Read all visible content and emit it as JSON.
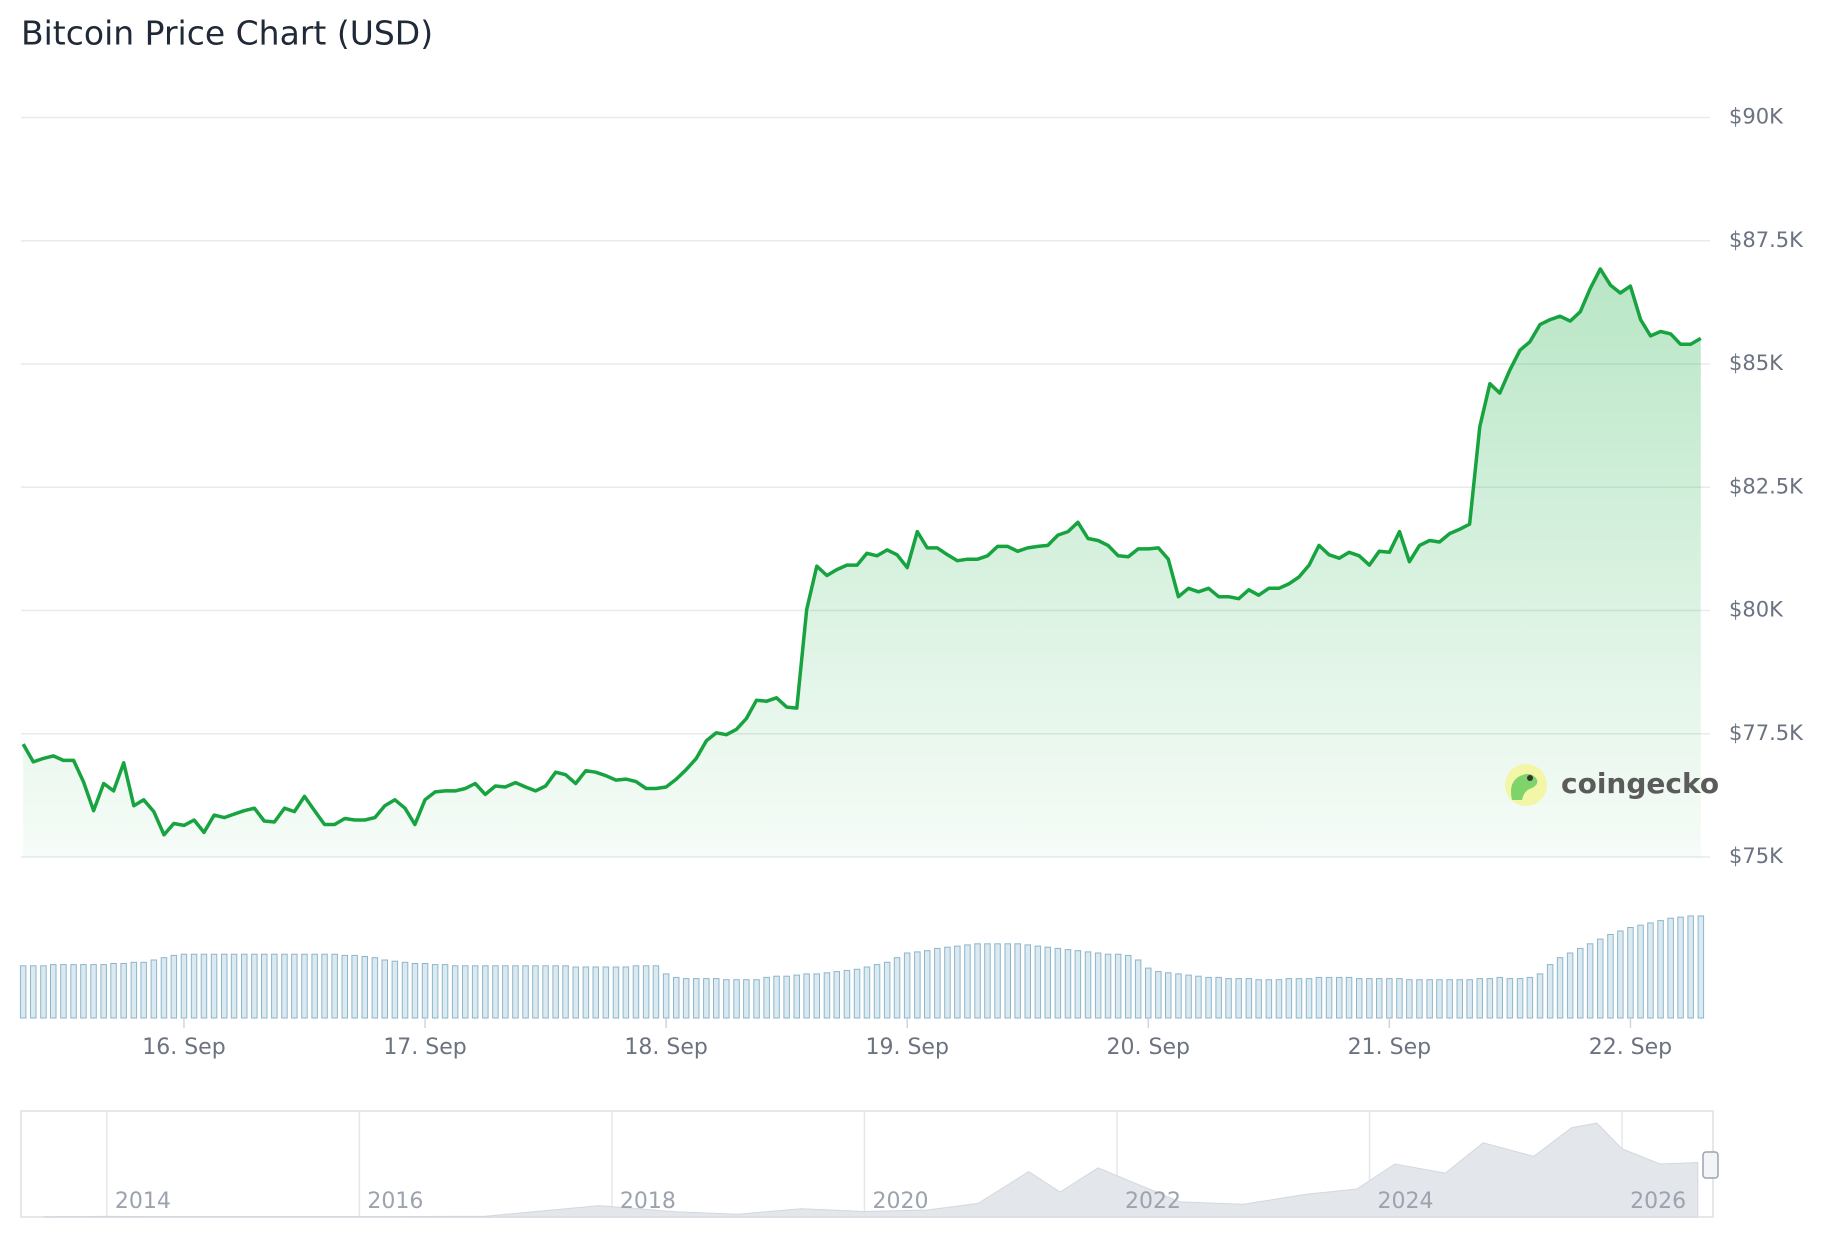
{
  "chart_data": {
    "type": "line",
    "title": "Bitcoin Price Chart (USD)",
    "watermark": "coingecko",
    "color": "#17a33f",
    "grid": true,
    "xlim": [
      15.324,
      22.33
    ],
    "ylim": [
      75000,
      90000
    ],
    "yticks": [
      {
        "value": 75000,
        "label": "$75K"
      },
      {
        "value": 77500,
        "label": "$77.5K"
      },
      {
        "value": 80000,
        "label": "$80K"
      },
      {
        "value": 82500,
        "label": "$82.5K"
      },
      {
        "value": 85000,
        "label": "$85K"
      },
      {
        "value": 87500,
        "label": "$87.5K"
      },
      {
        "value": 90000,
        "label": "$90K"
      }
    ],
    "xticks": [
      {
        "value": 16,
        "label": "16. Sep"
      },
      {
        "value": 17,
        "label": "17. Sep"
      },
      {
        "value": 18,
        "label": "18. Sep"
      },
      {
        "value": 19,
        "label": "19. Sep"
      },
      {
        "value": 20,
        "label": "20. Sep"
      },
      {
        "value": 21,
        "label": "21. Sep"
      },
      {
        "value": 22,
        "label": "22. Sep"
      }
    ],
    "x": [
      15.333,
      15.375,
      15.417,
      15.458,
      15.5,
      15.542,
      15.583,
      15.625,
      15.667,
      15.708,
      15.75,
      15.792,
      15.833,
      15.875,
      15.917,
      15.958,
      16,
      16.042,
      16.083,
      16.125,
      16.167,
      16.208,
      16.25,
      16.292,
      16.333,
      16.375,
      16.417,
      16.458,
      16.5,
      16.542,
      16.583,
      16.625,
      16.667,
      16.708,
      16.75,
      16.792,
      16.833,
      16.875,
      16.917,
      16.958,
      17,
      17.042,
      17.083,
      17.125,
      17.167,
      17.208,
      17.25,
      17.292,
      17.333,
      17.375,
      17.417,
      17.458,
      17.5,
      17.542,
      17.583,
      17.625,
      17.667,
      17.708,
      17.75,
      17.792,
      17.833,
      17.875,
      17.917,
      17.958,
      18,
      18.042,
      18.083,
      18.125,
      18.167,
      18.208,
      18.25,
      18.292,
      18.333,
      18.375,
      18.417,
      18.458,
      18.5,
      18.542,
      18.583,
      18.625,
      18.667,
      18.708,
      18.75,
      18.792,
      18.833,
      18.875,
      18.917,
      18.958,
      19,
      19.042,
      19.083,
      19.125,
      19.167,
      19.208,
      19.25,
      19.292,
      19.333,
      19.375,
      19.417,
      19.458,
      19.5,
      19.542,
      19.583,
      19.625,
      19.667,
      19.708,
      19.75,
      19.792,
      19.833,
      19.875,
      19.917,
      19.958,
      20,
      20.042,
      20.083,
      20.125,
      20.167,
      20.208,
      20.25,
      20.292,
      20.333,
      20.375,
      20.417,
      20.458,
      20.5,
      20.542,
      20.583,
      20.625,
      20.667,
      20.708,
      20.75,
      20.792,
      20.833,
      20.875,
      20.917,
      20.958,
      21,
      21.042,
      21.083,
      21.125,
      21.167,
      21.208,
      21.25,
      21.292,
      21.333,
      21.375,
      21.417,
      21.458,
      21.5,
      21.542,
      21.583,
      21.625,
      21.667,
      21.708,
      21.75,
      21.792,
      21.833,
      21.875,
      21.917,
      21.958,
      22,
      22.042,
      22.083,
      22.125,
      22.167,
      22.208,
      22.25,
      22.292
    ],
    "values": [
      77290,
      76930,
      77000,
      77050,
      76960,
      76960,
      76530,
      75940,
      76490,
      76340,
      76910,
      76040,
      76160,
      75920,
      75450,
      75680,
      75640,
      75750,
      75500,
      75850,
      75800,
      75870,
      75940,
      75990,
      75730,
      75710,
      75990,
      75920,
      76230,
      75940,
      75660,
      75660,
      75780,
      75750,
      75750,
      75800,
      76040,
      76160,
      75990,
      75660,
      76160,
      76320,
      76340,
      76340,
      76390,
      76490,
      76270,
      76440,
      76420,
      76510,
      76420,
      76340,
      76440,
      76720,
      76670,
      76490,
      76750,
      76720,
      76650,
      76560,
      76580,
      76530,
      76390,
      76390,
      76420,
      76580,
      76770,
      77000,
      77360,
      77520,
      77480,
      77590,
      77810,
      78180,
      78160,
      78230,
      78040,
      78020,
      80020,
      80900,
      80710,
      80830,
      80920,
      80920,
      81160,
      81110,
      81230,
      81130,
      80870,
      81600,
      81270,
      81270,
      81130,
      81010,
      81040,
      81040,
      81110,
      81300,
      81300,
      81200,
      81270,
      81300,
      81320,
      81530,
      81600,
      81790,
      81460,
      81420,
      81320,
      81110,
      81090,
      81250,
      81250,
      81270,
      81040,
      80280,
      80450,
      80380,
      80450,
      80280,
      80280,
      80240,
      80420,
      80310,
      80450,
      80450,
      80540,
      80680,
      80920,
      81320,
      81130,
      81060,
      81180,
      81110,
      80920,
      81200,
      81180,
      81600,
      80990,
      81320,
      81420,
      81390,
      81560,
      81650,
      81750,
      83730,
      84600,
      84410,
      84880,
      85280,
      85450,
      85800,
      85900,
      85970,
      85870,
      86060,
      86530,
      86930,
      86600,
      86440,
      86580,
      85900,
      85570,
      85660,
      85610,
      85400,
      85400,
      85520
    ],
    "volume": {
      "color": "#8db6cc",
      "ylim": [
        0,
        100
      ],
      "values": [
        45,
        45,
        45,
        46,
        46,
        46,
        46,
        46,
        46,
        47,
        47,
        48,
        48,
        50,
        52,
        54,
        55,
        55,
        55,
        55,
        55,
        55,
        55,
        55,
        55,
        55,
        55,
        55,
        55,
        55,
        55,
        55,
        54,
        54,
        53,
        52,
        50,
        49,
        48,
        47,
        47,
        46,
        46,
        45,
        45,
        45,
        45,
        45,
        45,
        45,
        45,
        45,
        45,
        45,
        45,
        44,
        44,
        44,
        44,
        44,
        44,
        45,
        45,
        45,
        38,
        35,
        34,
        34,
        34,
        34,
        33,
        33,
        33,
        33,
        35,
        36,
        36,
        37,
        38,
        38,
        39,
        40,
        41,
        42,
        44,
        46,
        48,
        52,
        56,
        57,
        58,
        60,
        61,
        62,
        63,
        64,
        64,
        64,
        64,
        64,
        63,
        62,
        61,
        60,
        59,
        58,
        57,
        56,
        55,
        55,
        54,
        50,
        43,
        40,
        39,
        38,
        37,
        36,
        35,
        35,
        34,
        34,
        34,
        33,
        33,
        33,
        34,
        34,
        34,
        35,
        35,
        35,
        35,
        34,
        34,
        34,
        34,
        34,
        33,
        33,
        33,
        33,
        33,
        33,
        33,
        34,
        34,
        35,
        34,
        34,
        35,
        38,
        46,
        52,
        56,
        60,
        64,
        68,
        72,
        75,
        78,
        80,
        82,
        84,
        86,
        87,
        88,
        88
      ]
    },
    "navigator": {
      "xlim": [
        2013.32,
        2026.72
      ],
      "ylim": [
        0,
        140000
      ],
      "xticks": [
        2014,
        2016,
        2018,
        2020,
        2022,
        2024,
        2026
      ],
      "x": [
        2013.5,
        2014,
        2015,
        2016,
        2017,
        2017.9,
        2018.5,
        2019,
        2019.5,
        2020,
        2020.5,
        2020.9,
        2021.3,
        2021.55,
        2021.85,
        2022.5,
        2023,
        2023.5,
        2023.9,
        2024.2,
        2024.6,
        2024.9,
        2025.3,
        2025.6,
        2025.8,
        2026,
        2026.3,
        2026.6
      ],
      "values": [
        100,
        800,
        300,
        430,
        1000,
        15000,
        7000,
        3700,
        11000,
        7200,
        9200,
        18000,
        60000,
        33000,
        65000,
        20000,
        16800,
        30000,
        37000,
        70000,
        58000,
        98000,
        80000,
        118000,
        124000,
        90000,
        70000,
        72000
      ]
    }
  }
}
